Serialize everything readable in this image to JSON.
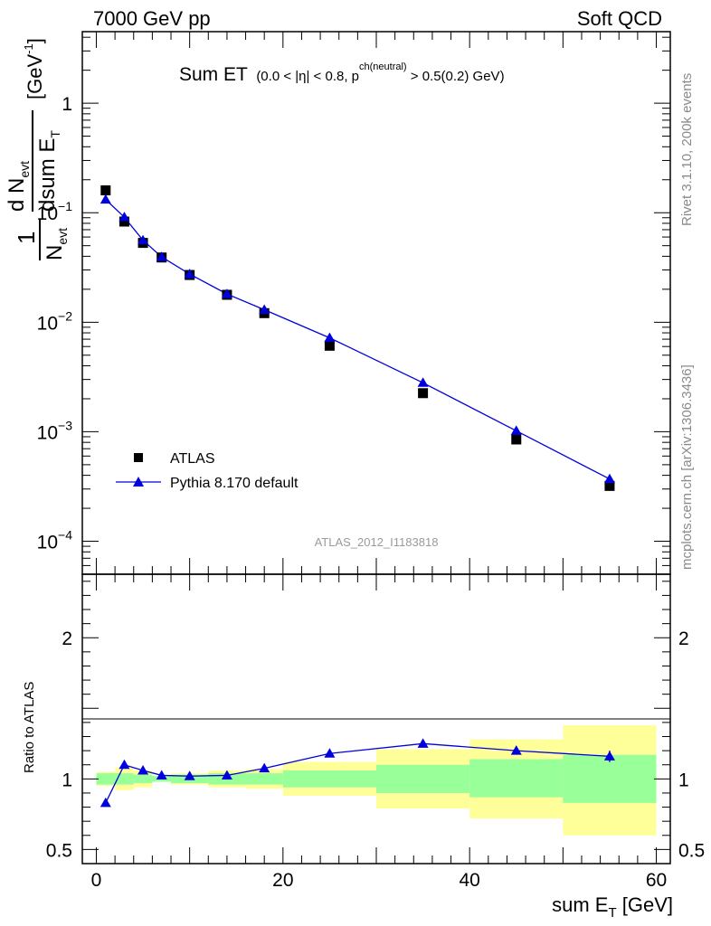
{
  "header": {
    "left": "7000 GeV pp",
    "right": "Soft QCD"
  },
  "side_text": {
    "rivet": "Rivet 3.1.10,  200k events",
    "mcplots": "mcplots.cern.ch [arXiv:1306.3436]"
  },
  "chart_data": {
    "type": "scatter",
    "title": "Sum ET",
    "title_cuts": "(0.0 < |η| < 0.8, p",
    "title_cuts_sup": "ch(neutral)",
    "title_cuts_end": " > 0.5(0.2) GeV)",
    "analysis_id": "ATLAS_2012_I1183818",
    "xlabel": "sum E",
    "xlabel_sub": "T",
    "xlabel_unit": " [GeV]",
    "ylabel_parts": {
      "one": "1",
      "n_evt": "N",
      "evt_sub": "evt",
      "d_n_evt": "d N",
      "dsum_et": "dsum E",
      "et_sub": "T",
      "unit": "[GeV",
      "unit_sup": "-1",
      "unit_end": "]"
    },
    "ratio_ylabel": "Ratio to ATLAS",
    "xlim": [
      -1.5,
      61.5
    ],
    "ylim": [
      5e-05,
      4.5
    ],
    "yscale": "log",
    "ratio_ylim": [
      0.4,
      2.45
    ],
    "x_ticks": [
      "0",
      "20",
      "40",
      "60"
    ],
    "y_tick_labels": [
      {
        "value": 1,
        "base": "1",
        "exp": ""
      },
      {
        "value": 0.1,
        "base": "10",
        "exp": "−1"
      },
      {
        "value": 0.01,
        "base": "10",
        "exp": "−2"
      },
      {
        "value": 0.001,
        "base": "10",
        "exp": "−3"
      },
      {
        "value": 0.0001,
        "base": "10",
        "exp": "−4"
      }
    ],
    "ratio_tick_labels": [
      {
        "value": 2,
        "label": "2"
      },
      {
        "value": 1,
        "label": "1"
      },
      {
        "value": 0.5,
        "label": "0.5"
      }
    ],
    "legend": [
      {
        "name": "ATLAS",
        "marker": "square",
        "color": "#000000"
      },
      {
        "name": "Pythia 8.170 default",
        "marker": "triangle",
        "color": "#0000dd"
      }
    ],
    "series": [
      {
        "name": "ATLAS",
        "x": [
          1,
          3,
          5,
          7,
          10,
          14,
          18,
          25,
          35,
          45,
          55
        ],
        "y": [
          0.16,
          0.083,
          0.053,
          0.039,
          0.027,
          0.0178,
          0.0121,
          0.0061,
          0.00225,
          0.00085,
          0.00032
        ]
      },
      {
        "name": "Pythia 8.170 default",
        "x": [
          1,
          3,
          5,
          7,
          10,
          14,
          18,
          25,
          35,
          45,
          55
        ],
        "y": [
          0.132,
          0.091,
          0.056,
          0.0395,
          0.0275,
          0.0181,
          0.013,
          0.0072,
          0.0028,
          0.00102,
          0.00037
        ]
      }
    ],
    "ratio": {
      "x": [
        1,
        3,
        5,
        7,
        10,
        14,
        18,
        25,
        35,
        45,
        55
      ],
      "y": [
        0.83,
        1.1,
        1.06,
        1.025,
        1.02,
        1.025,
        1.075,
        1.18,
        1.25,
        1.2,
        1.16
      ],
      "y_err": [
        0,
        0,
        0,
        0,
        0,
        0,
        0,
        0,
        0,
        0,
        0.04
      ]
    },
    "bands": [
      {
        "x0": 0,
        "x1": 2,
        "stat_lo": 0.96,
        "stat_hi": 1.04,
        "tot_lo": 0.95,
        "tot_hi": 1.05
      },
      {
        "x0": 2,
        "x1": 4,
        "stat_lo": 0.96,
        "stat_hi": 1.04,
        "tot_lo": 0.92,
        "tot_hi": 1.08
      },
      {
        "x0": 4,
        "x1": 6,
        "stat_lo": 0.97,
        "stat_hi": 1.03,
        "tot_lo": 0.94,
        "tot_hi": 1.06
      },
      {
        "x0": 6,
        "x1": 8,
        "stat_lo": 0.98,
        "stat_hi": 1.02,
        "tot_lo": 0.98,
        "tot_hi": 1.02
      },
      {
        "x0": 8,
        "x1": 12,
        "stat_lo": 0.97,
        "stat_hi": 1.03,
        "tot_lo": 0.96,
        "tot_hi": 1.04
      },
      {
        "x0": 12,
        "x1": 16,
        "stat_lo": 0.96,
        "stat_hi": 1.04,
        "tot_lo": 0.94,
        "tot_hi": 1.06
      },
      {
        "x0": 16,
        "x1": 20,
        "stat_lo": 0.96,
        "stat_hi": 1.04,
        "tot_lo": 0.93,
        "tot_hi": 1.07
      },
      {
        "x0": 20,
        "x1": 30,
        "stat_lo": 0.94,
        "stat_hi": 1.06,
        "tot_lo": 0.88,
        "tot_hi": 1.12
      },
      {
        "x0": 30,
        "x1": 40,
        "stat_lo": 0.9,
        "stat_hi": 1.1,
        "tot_lo": 0.79,
        "tot_hi": 1.21
      },
      {
        "x0": 40,
        "x1": 50,
        "stat_lo": 0.87,
        "stat_hi": 1.14,
        "tot_lo": 0.72,
        "tot_hi": 1.28
      },
      {
        "x0": 50,
        "x1": 60,
        "stat_lo": 0.83,
        "stat_hi": 1.17,
        "tot_lo": 0.6,
        "tot_hi": 1.38
      }
    ],
    "colors": {
      "data": "#000000",
      "mc": "#0000dd",
      "stat_band": "#99ff99",
      "total_band": "#ffff99",
      "watermark": "#9a9a9a"
    }
  }
}
